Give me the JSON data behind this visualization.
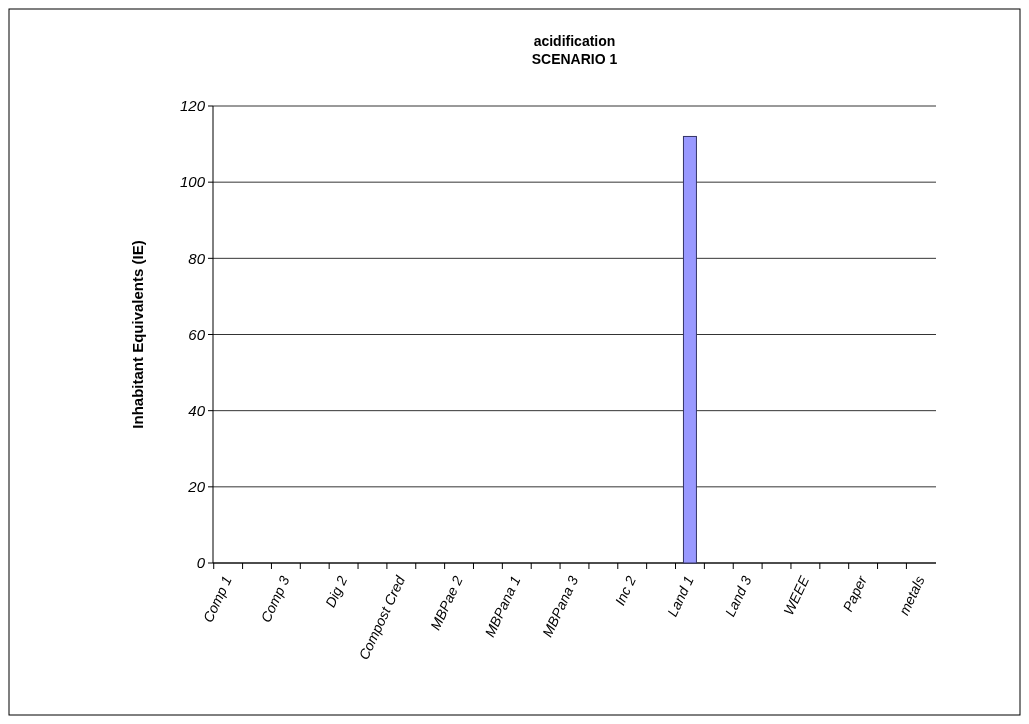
{
  "chart_data": {
    "type": "bar",
    "title": "acidification",
    "subtitle": "SCENARIO 1",
    "ylabel": "Inhabitant Equivalents (IE)",
    "categories": [
      "Comp 1",
      null,
      "Comp 3",
      null,
      "Dig 2",
      null,
      "Compost Cred",
      null,
      "MBPae 2",
      null,
      "MBPana 1",
      null,
      "MBPana 3",
      null,
      "Inc 2",
      null,
      "Land 1",
      null,
      "Land 3",
      null,
      "WEEE",
      null,
      "Paper",
      null,
      "metals"
    ],
    "values": [
      0,
      0,
      0,
      0,
      0,
      0,
      0,
      0,
      0,
      0,
      0,
      0,
      0,
      0,
      0,
      0,
      112,
      0,
      0,
      0,
      0,
      0,
      0,
      0,
      0
    ],
    "color": "#9999ff",
    "ylim": [
      0,
      120
    ],
    "yticks": [
      0,
      20,
      40,
      60,
      80,
      100,
      120
    ],
    "grid": "y"
  }
}
